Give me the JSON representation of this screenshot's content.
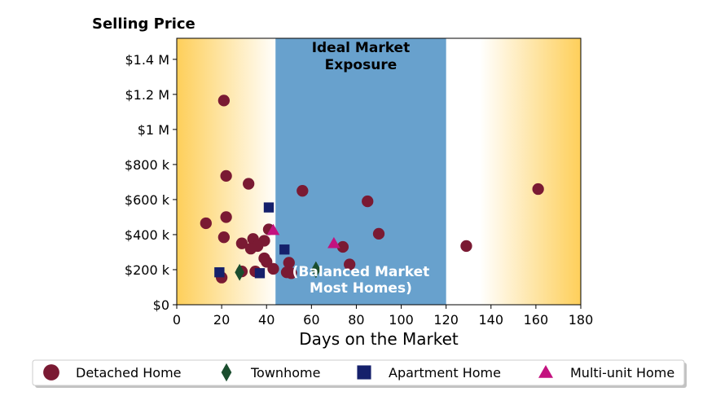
{
  "chart_data": {
    "type": "scatter",
    "title": "Selling Price",
    "xlabel": "Days on the Market",
    "ylabel": "",
    "xlim": [
      0,
      180
    ],
    "ylim": [
      0,
      1520000
    ],
    "x_ticks": [
      0,
      20,
      40,
      60,
      80,
      100,
      120,
      140,
      160,
      180
    ],
    "x_tick_labels": [
      "0",
      "20",
      "40",
      "60",
      "80",
      "100",
      "120",
      "140",
      "160",
      "180"
    ],
    "y_ticks": [
      0,
      200000,
      400000,
      600000,
      800000,
      1000000,
      1200000,
      1400000
    ],
    "y_tick_labels": [
      "$0",
      "$200 k",
      "$400 k",
      "$600 k",
      "$800 k",
      "$1 M",
      "$1.2 M",
      "$1.4 M"
    ],
    "grid": false,
    "legend_position": "bottom",
    "background_gradient": {
      "edge_color": "#fecf5a",
      "center_color": "#ffffff"
    },
    "ideal_band": {
      "x_range": [
        44,
        120
      ],
      "color": "#68a1cd",
      "top_label": "Ideal Market Exposure",
      "bottom_label": "(Balanced Market Most Homes)"
    },
    "series": [
      {
        "name": "Detached Home",
        "marker": "circle",
        "color": "#7a1a33",
        "points": [
          [
            21,
            1165000
          ],
          [
            22,
            735000
          ],
          [
            32,
            690000
          ],
          [
            56,
            650000
          ],
          [
            85,
            590000
          ],
          [
            161,
            660000
          ],
          [
            22,
            500000
          ],
          [
            13,
            465000
          ],
          [
            41,
            430000
          ],
          [
            90,
            405000
          ],
          [
            21,
            385000
          ],
          [
            34,
            375000
          ],
          [
            39,
            365000
          ],
          [
            29,
            350000
          ],
          [
            36,
            335000
          ],
          [
            33,
            320000
          ],
          [
            74,
            330000
          ],
          [
            129,
            335000
          ],
          [
            39,
            265000
          ],
          [
            40,
            245000
          ],
          [
            50,
            240000
          ],
          [
            77,
            230000
          ],
          [
            43,
            205000
          ],
          [
            29,
            190000
          ],
          [
            35,
            190000
          ],
          [
            49,
            185000
          ],
          [
            51,
            180000
          ],
          [
            20,
            155000
          ]
        ]
      },
      {
        "name": "Townhome",
        "marker": "diamond",
        "color": "#1a4d2e",
        "points": [
          [
            28,
            185000
          ],
          [
            62,
            200000
          ]
        ]
      },
      {
        "name": "Apartment Home",
        "marker": "square",
        "color": "#15206b",
        "points": [
          [
            41,
            555000
          ],
          [
            48,
            315000
          ],
          [
            19,
            185000
          ],
          [
            37,
            180000
          ]
        ]
      },
      {
        "name": "Multi-unit Home",
        "marker": "triangle",
        "color": "#c3127f",
        "points": [
          [
            43,
            425000
          ],
          [
            70,
            350000
          ]
        ]
      }
    ]
  }
}
